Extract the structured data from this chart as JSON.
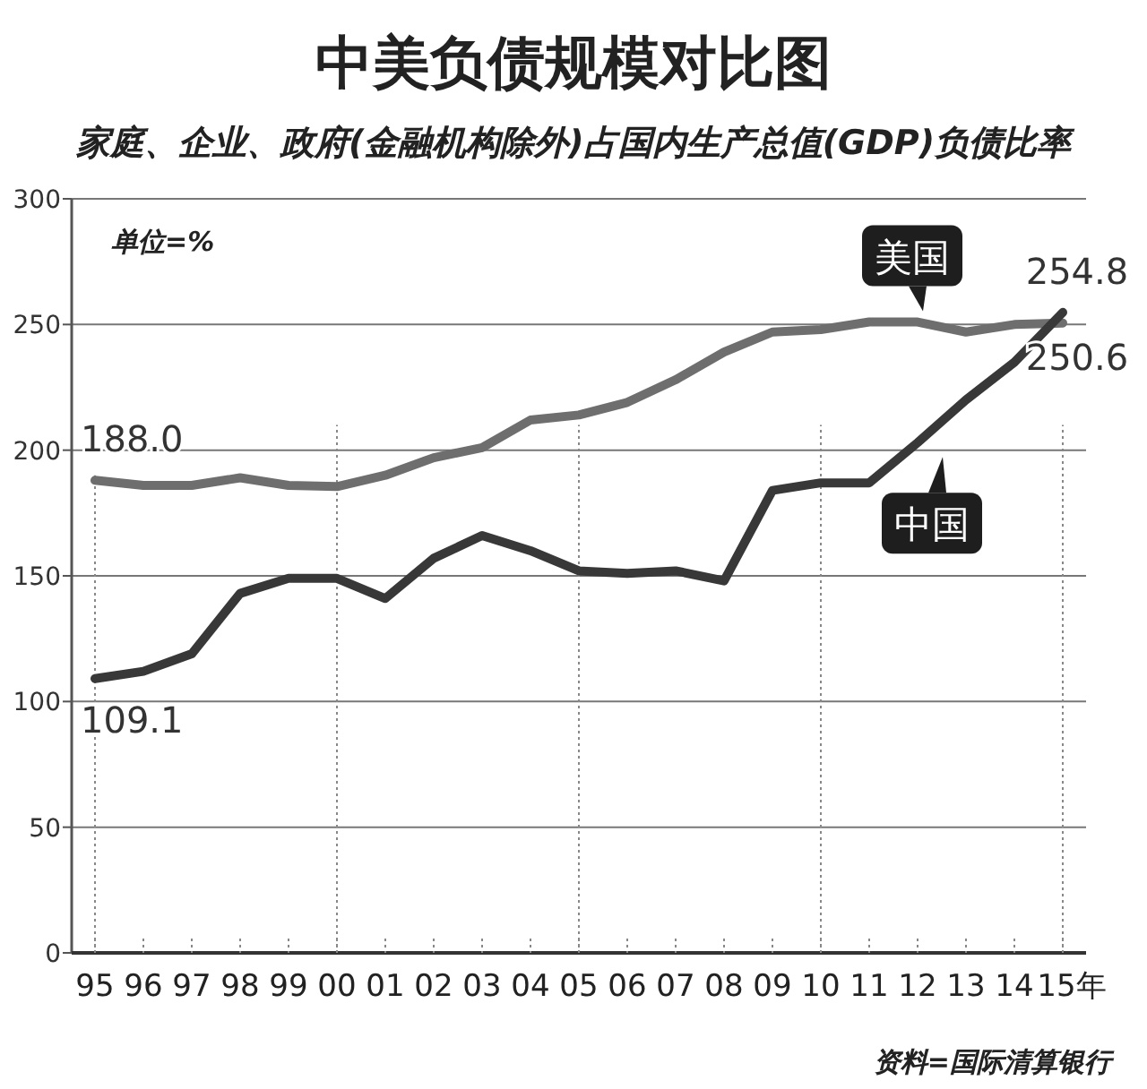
{
  "chart_data": {
    "type": "line",
    "title": "中美负债规模对比图",
    "subtitle": "家庭、企业、政府(金融机构除外)占国内生产总值(GDP)负债比率",
    "categories": [
      "95",
      "96",
      "97",
      "98",
      "99",
      "00",
      "01",
      "02",
      "03",
      "04",
      "05",
      "06",
      "07",
      "08",
      "09",
      "10",
      "11",
      "12",
      "13",
      "14",
      "15年"
    ],
    "series": [
      {
        "name": "美国",
        "color": "#6e6e6e",
        "values": [
          188.0,
          186,
          186,
          189,
          186,
          185.5,
          190,
          197,
          201,
          212,
          214,
          219,
          228,
          239,
          247,
          248,
          251,
          251,
          247,
          250,
          250.6
        ]
      },
      {
        "name": "中国",
        "color": "#383838",
        "values": [
          109.1,
          112,
          119,
          143,
          149,
          149,
          141,
          157,
          166,
          160,
          152,
          151,
          152,
          148,
          184,
          187,
          187,
          203,
          220,
          235,
          254.8
        ]
      }
    ],
    "ylim": [
      0,
      300
    ],
    "yticks": [
      0,
      50,
      100,
      150,
      200,
      250,
      300
    ],
    "grid": "y",
    "legend": false,
    "marker": "none",
    "line_style": "solid",
    "ref_lines": [
      {
        "axis": "x",
        "value": "95",
        "line_style": "dotted"
      },
      {
        "axis": "x",
        "value": "00",
        "line_style": "dotted"
      },
      {
        "axis": "x",
        "value": "05",
        "line_style": "dotted"
      },
      {
        "axis": "x",
        "value": "10",
        "line_style": "dotted"
      },
      {
        "axis": "x",
        "value": "15年",
        "line_style": "dotted"
      }
    ],
    "annotations": [
      "单位=%",
      {
        "text": "188.0",
        "x": "95",
        "y": 188.0
      },
      {
        "text": "109.1",
        "x": "95",
        "y": 109.1
      },
      {
        "text": "254.8",
        "x": "15年",
        "y": 254.8
      },
      {
        "text": "250.6",
        "x": "15年",
        "y": 250.6
      },
      "资料=国际清算银行"
    ]
  }
}
